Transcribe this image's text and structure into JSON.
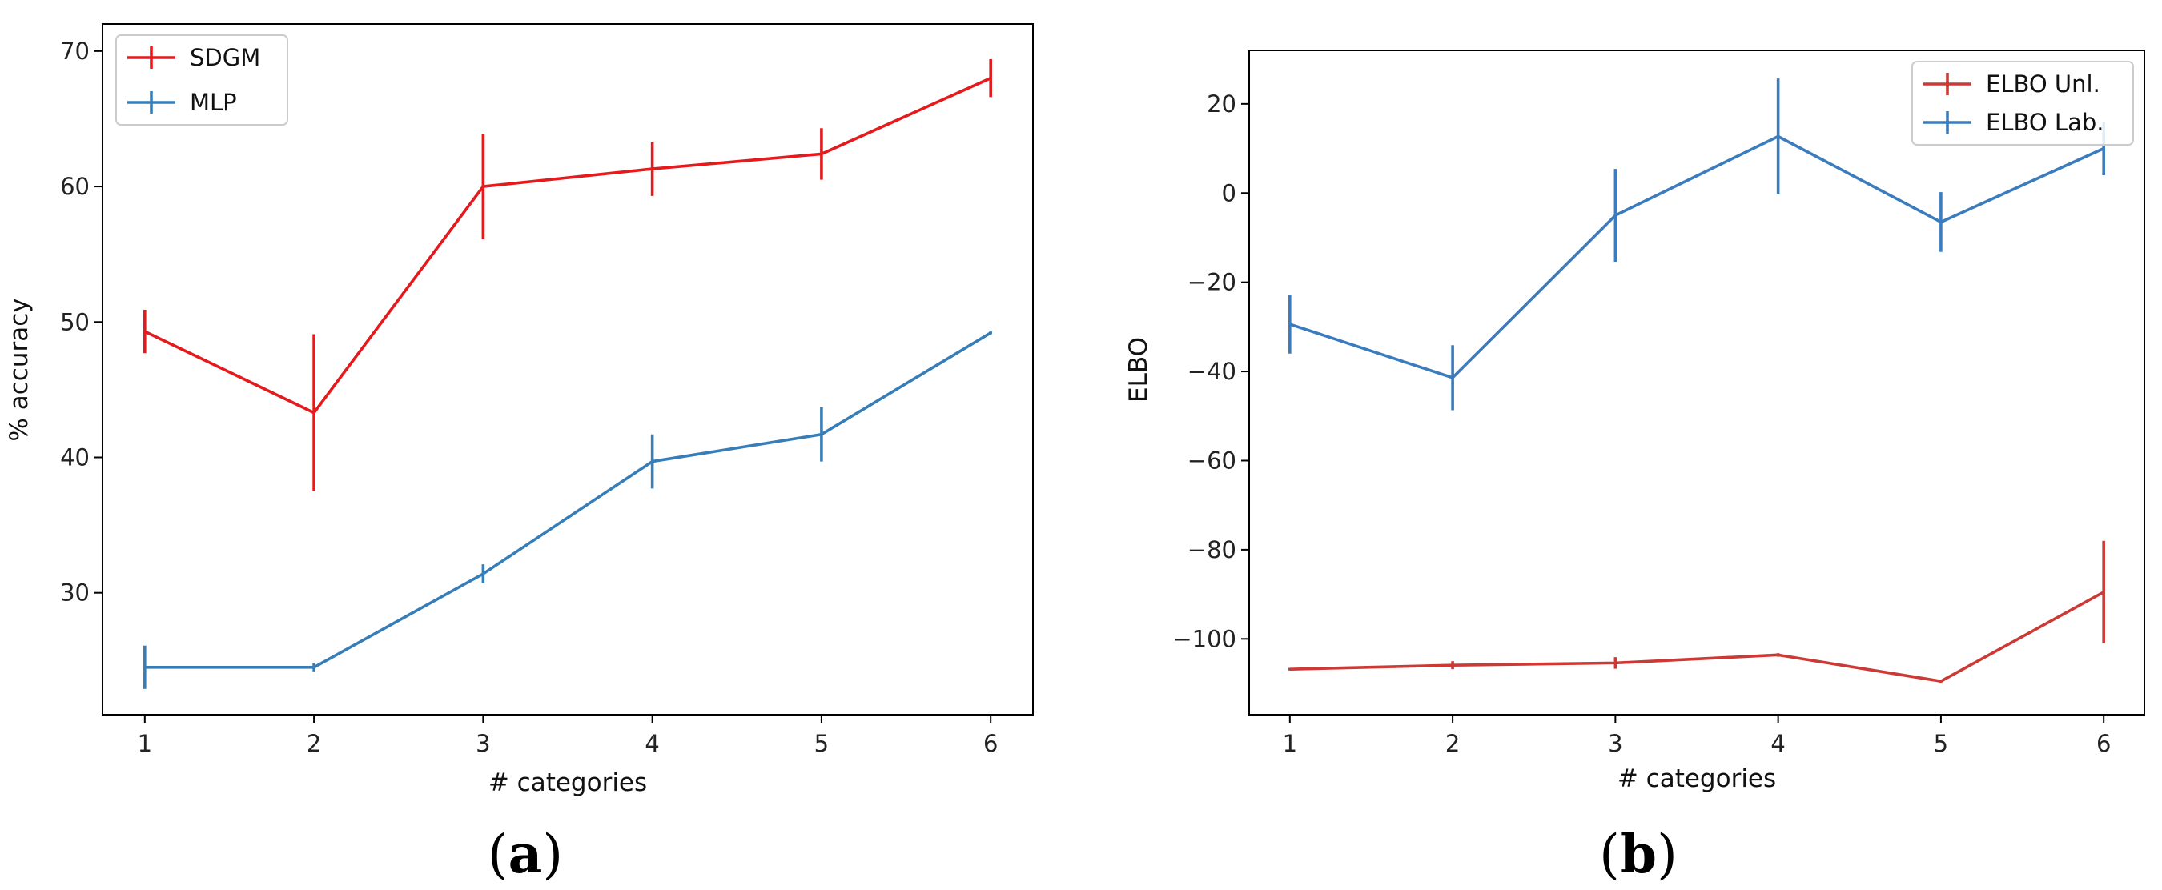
{
  "chart_data": [
    {
      "id": "a",
      "panel_label": "(a)",
      "panel_letter": "a",
      "type": "line",
      "xlabel": "# categories",
      "ylabel": "% accuracy",
      "x": [
        1,
        2,
        3,
        4,
        5,
        6
      ],
      "xlim": [
        0.75,
        6.25
      ],
      "ylim": [
        21.0,
        72.0
      ],
      "xticks": [
        1,
        2,
        3,
        4,
        5,
        6
      ],
      "yticks": [
        30,
        40,
        50,
        60,
        70
      ],
      "legend_position": "top-left",
      "series": [
        {
          "name": "SDGM",
          "color": "#e41a1c",
          "values": [
            49.3,
            43.3,
            60.0,
            61.3,
            62.4,
            68.0
          ],
          "errors": [
            1.6,
            5.8,
            3.9,
            2.0,
            1.9,
            1.4
          ]
        },
        {
          "name": "MLP",
          "color": "#377eb8",
          "values": [
            24.5,
            24.5,
            31.4,
            39.7,
            41.7,
            49.2
          ],
          "errors": [
            1.6,
            0.3,
            0.7,
            2.0,
            2.0,
            0.1
          ]
        }
      ]
    },
    {
      "id": "b",
      "panel_label": "(b)",
      "panel_letter": "b",
      "type": "line",
      "xlabel": "# categories",
      "ylabel": "ELBO",
      "x": [
        1,
        2,
        3,
        4,
        5,
        6
      ],
      "xlim": [
        0.75,
        6.25
      ],
      "ylim": [
        -117.0,
        32.0
      ],
      "xticks": [
        1,
        2,
        3,
        4,
        5,
        6
      ],
      "yticks": [
        -100,
        -80,
        -60,
        -40,
        -20,
        0,
        20
      ],
      "legend_position": "top-right",
      "series": [
        {
          "name": "ELBO Unl.",
          "color": "#cb3a35",
          "values": [
            -106.8,
            -105.9,
            -105.4,
            -103.6,
            -109.5,
            -89.5
          ],
          "errors": [
            0.3,
            0.9,
            1.3,
            0.4,
            0.3,
            11.5
          ]
        },
        {
          "name": "ELBO Lab.",
          "color": "#3a7cbd",
          "values": [
            -29.4,
            -41.4,
            -5.0,
            12.7,
            -6.5,
            10.0
          ],
          "errors": [
            6.6,
            7.3,
            10.4,
            13.0,
            6.7,
            6.0
          ]
        }
      ]
    }
  ]
}
